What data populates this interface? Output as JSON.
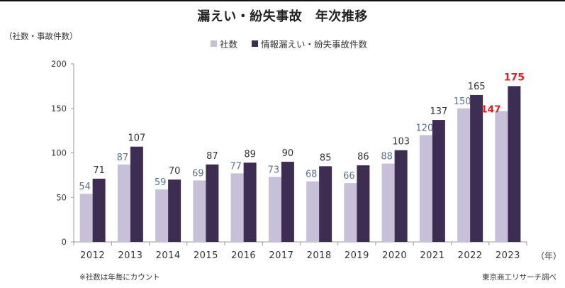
{
  "chart_data": {
    "type": "bar",
    "title": "漏えい・紛失事故　年次推移",
    "ylabel": "（社数・事故件数）",
    "xlabel_unit": "（年）",
    "ylim": [
      0,
      200
    ],
    "yticks": [
      0,
      50,
      100,
      150,
      200
    ],
    "grid": false,
    "legend_position": "top",
    "categories": [
      "2012",
      "2013",
      "2014",
      "2015",
      "2016",
      "2017",
      "2018",
      "2019",
      "2020",
      "2021",
      "2022",
      "2023"
    ],
    "series": [
      {
        "name": "社数",
        "color": "#c8bfd9",
        "label_color": "#5b7390",
        "values": [
          54,
          87,
          59,
          69,
          77,
          73,
          68,
          66,
          88,
          120,
          150,
          147
        ]
      },
      {
        "name": "情報漏えい・紛失事故件数",
        "color": "#3e2d52",
        "label_color": "#333333",
        "values": [
          71,
          107,
          70,
          87,
          89,
          90,
          85,
          86,
          103,
          137,
          165,
          175
        ]
      }
    ],
    "highlight": {
      "category": "2023",
      "label_color": "#e02020"
    },
    "note": "※社数は年毎にカウント",
    "source": "東京商工リサーチ調べ"
  }
}
